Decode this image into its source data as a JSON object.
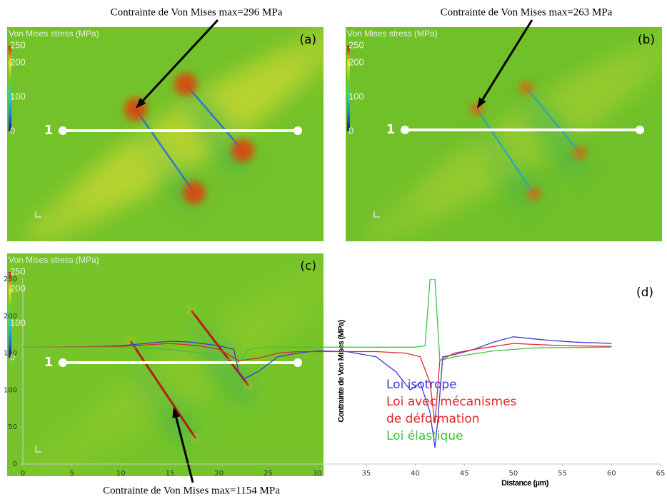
{
  "panels": [
    {
      "label": "(a)",
      "title": "Von Mises stress (MPa)",
      "colorbar_lim": [
        0,
        250
      ],
      "colorbar_ticks": [
        250,
        200,
        100,
        0
      ],
      "line_label": "1",
      "annotation": "Contrainte de Von Mises max=296 MPa"
    },
    {
      "label": "(b)",
      "title": "Von Mises stress (MPa)",
      "colorbar_lim": [
        0,
        250
      ],
      "colorbar_ticks": [
        250,
        200,
        100,
        0
      ],
      "line_label": "1",
      "annotation": "Contrainte de Von Mises max=263 MPa"
    },
    {
      "label": "(c)",
      "title": "Von Mises stress (MPa)",
      "colorbar_lim": [
        0,
        250
      ],
      "colorbar_ticks": [
        250,
        200,
        100,
        0
      ],
      "line_label": "1",
      "annotation": "Contrainte de Von Mises max=1154 MPa"
    }
  ],
  "chart_data": {
    "type": "line",
    "label": "(d)",
    "xlabel": "Distance (µm)",
    "ylabel": "Contrainte de Von Mises (MPa)",
    "xlim": [
      0,
      65
    ],
    "xticks": [
      0,
      5,
      10,
      15,
      20,
      25,
      30,
      35,
      40,
      45,
      50,
      55,
      60,
      65
    ],
    "ylim": [
      0,
      250
    ],
    "yticks": [
      0,
      50,
      100,
      150,
      200,
      250
    ],
    "series": [
      {
        "name": "Loi isotrope",
        "color": "#3a3ad8",
        "x": [
          0,
          5,
          10,
          15,
          17,
          20,
          21.5,
          22,
          22.5,
          24,
          26,
          28,
          30,
          33,
          36,
          38,
          39.5,
          40.5,
          41.5,
          42,
          42.3,
          42.8,
          44,
          46,
          48,
          50,
          53,
          56,
          60
        ],
        "values": [
          158,
          158,
          160,
          166,
          165,
          160,
          155,
          125,
          115,
          125,
          145,
          150,
          153,
          152,
          145,
          125,
          100,
          110,
          70,
          22,
          60,
          145,
          148,
          155,
          165,
          172,
          168,
          165,
          163
        ]
      },
      {
        "name": "Loi avec mécanismes de déformation",
        "color": "#e02828",
        "x": [
          0,
          10,
          15,
          18,
          20,
          22,
          24,
          26,
          28,
          32,
          36,
          39,
          40.5,
          41.5,
          42,
          42.5,
          44,
          46,
          50,
          55,
          60
        ],
        "values": [
          158,
          159,
          163,
          160,
          155,
          140,
          143,
          150,
          152,
          152,
          152,
          150,
          145,
          110,
          55,
          140,
          150,
          155,
          163,
          160,
          159
        ]
      },
      {
        "name": "Loi élastique",
        "color": "#3cc43c",
        "x": [
          0,
          10,
          15,
          18,
          20,
          22,
          23,
          25,
          35,
          40,
          41,
          41.5,
          42,
          42.5,
          44,
          48,
          52,
          60
        ],
        "values": [
          158,
          158,
          155,
          150,
          145,
          138,
          155,
          158,
          158,
          158,
          160,
          250,
          250,
          140,
          145,
          153,
          157,
          158
        ]
      }
    ]
  }
}
